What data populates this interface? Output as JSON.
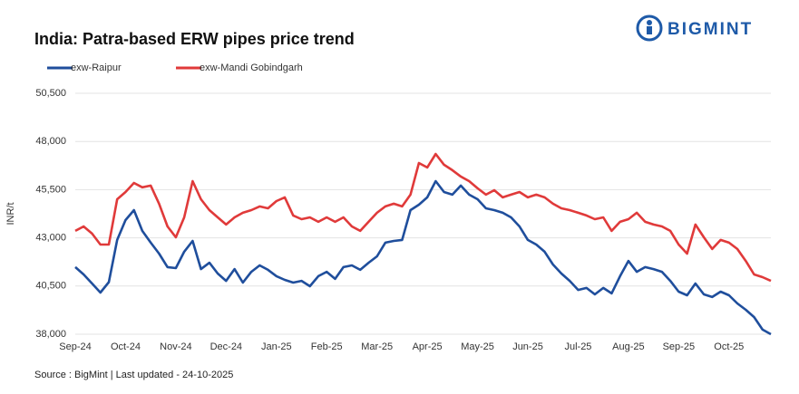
{
  "chart_data": {
    "type": "line",
    "title": "India: Patra-based ERW pipes price trend",
    "logo": "BIGMINT",
    "y_label": "INR/t",
    "source": "Source : BigMint | Last updated - 24-10-2025",
    "categories": [
      "Sep-24",
      null,
      null,
      null,
      null,
      null,
      "Oct-24",
      null,
      null,
      null,
      null,
      null,
      "Nov-24",
      null,
      null,
      null,
      null,
      null,
      "Dec-24",
      null,
      null,
      null,
      null,
      null,
      "Jan-25",
      null,
      null,
      null,
      null,
      null,
      "Feb-25",
      null,
      null,
      null,
      null,
      null,
      "Mar-25",
      null,
      null,
      null,
      null,
      null,
      "Apr-25",
      null,
      null,
      null,
      null,
      null,
      "May-25",
      null,
      null,
      null,
      null,
      null,
      "Jun-25",
      null,
      null,
      null,
      null,
      null,
      "Jul-25",
      null,
      null,
      null,
      null,
      null,
      "Aug-25",
      null,
      null,
      null,
      null,
      null,
      "Sep-25",
      null,
      null,
      null,
      null,
      null,
      "Oct-25",
      null,
      null,
      null,
      null,
      null
    ],
    "series": [
      {
        "name": "exw-Raipur",
        "color": "#1f4e9c",
        "values": [
          41480,
          41100,
          40630,
          40160,
          40700,
          42890,
          43920,
          44440,
          43360,
          42750,
          42180,
          41480,
          41430,
          42280,
          42840,
          41380,
          41710,
          41150,
          40770,
          41380,
          40680,
          41240,
          41570,
          41340,
          41010,
          40820,
          40680,
          40770,
          40490,
          41010,
          41240,
          40870,
          41480,
          41570,
          41340,
          41710,
          42040,
          42750,
          42840,
          42890,
          44440,
          44720,
          45100,
          45940,
          45380,
          45240,
          45710,
          45240,
          45000,
          44530,
          44440,
          44300,
          44060,
          43590,
          42890,
          42650,
          42280,
          41620,
          41150,
          40770,
          40300,
          40400,
          40070,
          40400,
          40120,
          41010,
          41800,
          41240,
          41480,
          41380,
          41240,
          40770,
          40210,
          40020,
          40630,
          40070,
          39930,
          40210,
          40020,
          39600,
          39270,
          38890,
          38240,
          38000
        ]
      },
      {
        "name": "exw-Mandi Gobindgarh",
        "color": "#e03a3a",
        "values": [
          43360,
          43590,
          43220,
          42650,
          42650,
          45000,
          45380,
          45850,
          45620,
          45710,
          44770,
          43590,
          43030,
          44060,
          45940,
          45000,
          44440,
          44060,
          43690,
          44060,
          44300,
          44440,
          44630,
          44530,
          44910,
          45100,
          44160,
          43970,
          44060,
          43830,
          44060,
          43830,
          44060,
          43590,
          43360,
          43830,
          44300,
          44630,
          44770,
          44630,
          45240,
          46880,
          46650,
          47350,
          46790,
          46510,
          46180,
          45940,
          45570,
          45240,
          45470,
          45100,
          45240,
          45380,
          45100,
          45240,
          45100,
          44770,
          44530,
          44440,
          44300,
          44160,
          43970,
          44060,
          43360,
          43830,
          43970,
          44300,
          43830,
          43690,
          43590,
          43360,
          42650,
          42180,
          43690,
          43030,
          42420,
          42890,
          42750,
          42420,
          41800,
          41100,
          40960,
          40770
        ]
      }
    ],
    "ylim": [
      38000,
      50500
    ],
    "yticks": [
      {
        "value": 38000,
        "label": "38,000"
      },
      {
        "value": 40500,
        "label": "40,500"
      },
      {
        "value": 43000,
        "label": "43,000"
      },
      {
        "value": 45500,
        "label": "45,500"
      },
      {
        "value": 48000,
        "label": "48,000"
      },
      {
        "value": 50500,
        "label": "50,500"
      }
    ],
    "grid": true
  }
}
